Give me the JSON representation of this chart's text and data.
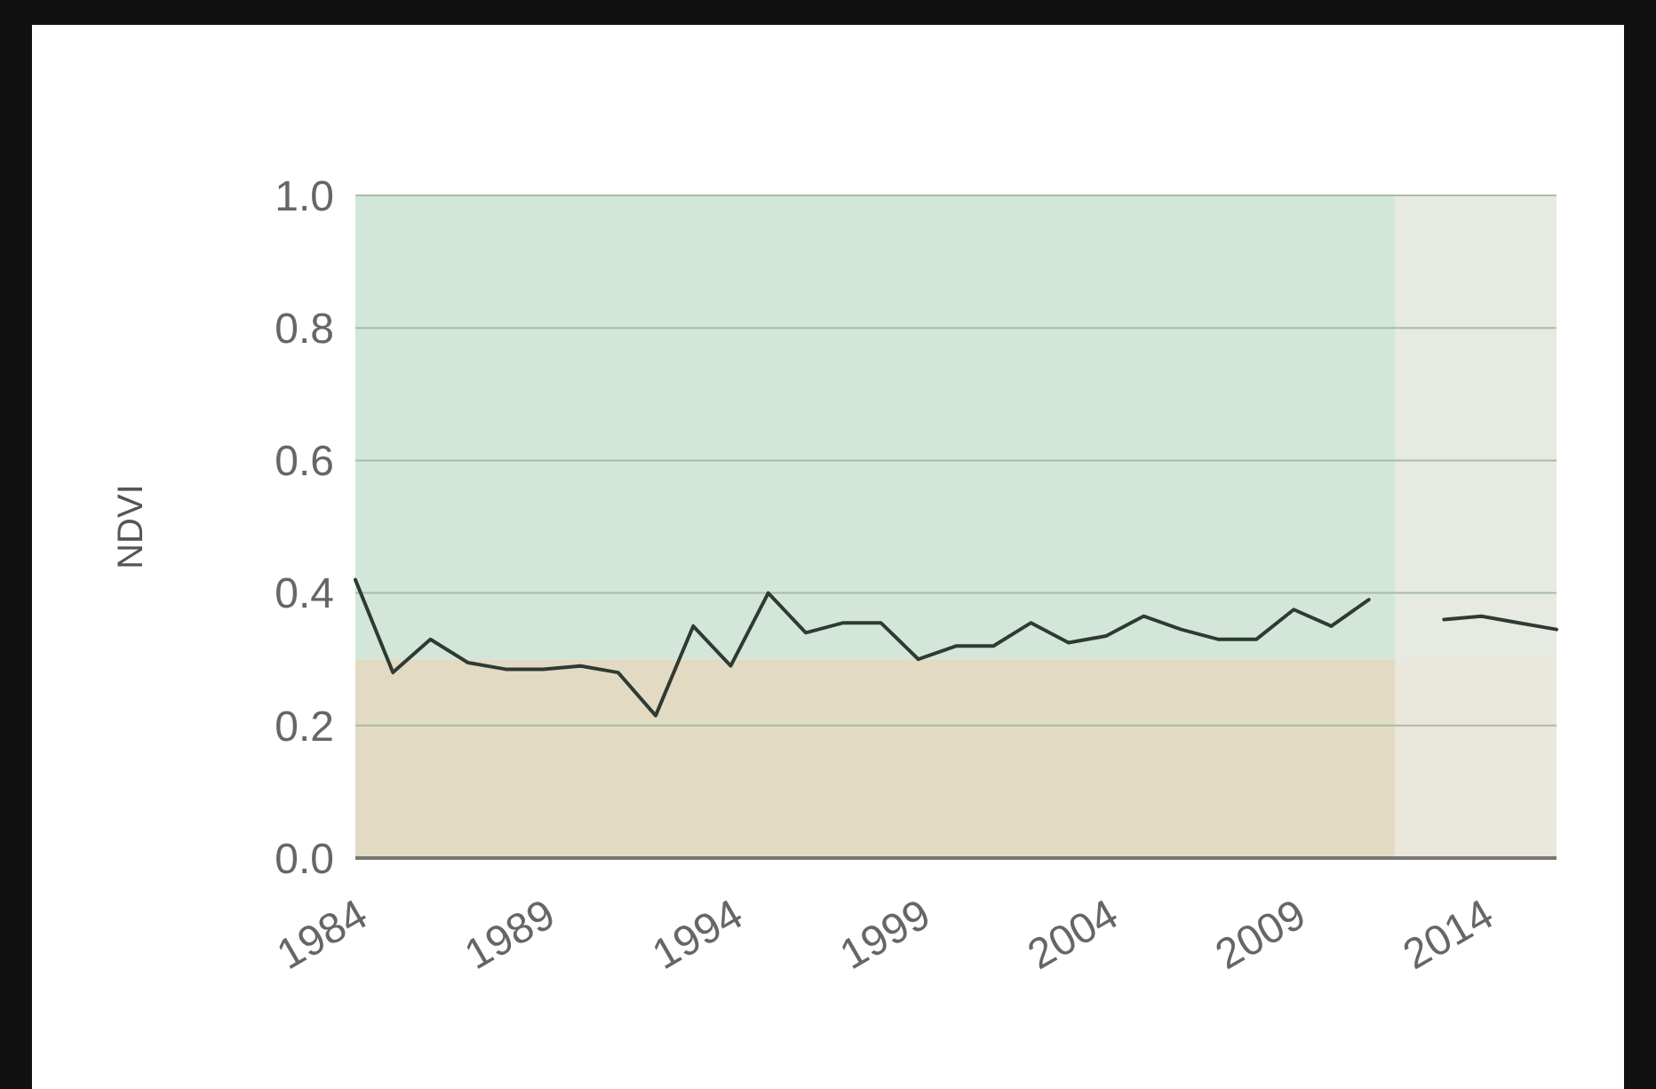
{
  "chart_data": {
    "type": "line",
    "ylabel": "NDVI",
    "x": [
      1984,
      1985,
      1986,
      1987,
      1988,
      1989,
      1990,
      1991,
      1992,
      1993,
      1994,
      1995,
      1996,
      1997,
      1998,
      1999,
      2000,
      2001,
      2002,
      2003,
      2004,
      2005,
      2006,
      2007,
      2008,
      2009,
      2010,
      2011,
      2012,
      2013,
      2014,
      2015,
      2016
    ],
    "series": [
      {
        "color": "#2f3a32",
        "values": [
          0.42,
          0.28,
          0.33,
          0.295,
          0.285,
          0.285,
          0.29,
          0.28,
          0.215,
          0.35,
          0.29,
          0.4,
          0.34,
          0.355,
          0.355,
          0.3,
          0.32,
          0.32,
          0.355,
          0.325,
          0.335,
          0.365,
          0.345,
          0.33,
          0.33,
          0.375,
          0.35,
          0.39,
          null,
          0.36,
          0.365,
          0.355,
          0.345
        ]
      }
    ],
    "xlim": [
      1984,
      2016
    ],
    "xticks": [
      1984,
      1989,
      1994,
      1999,
      2004,
      2009,
      2014
    ],
    "ylim": [
      0,
      1
    ],
    "yticks": [
      {
        "value": 0,
        "label": "0.0"
      },
      {
        "value": 0.2,
        "label": "0.2"
      },
      {
        "value": 0.4,
        "label": "0.4"
      },
      {
        "value": 0.6,
        "label": "0.6"
      },
      {
        "value": 0.8,
        "label": "0.8"
      },
      {
        "value": 1,
        "label": "1.0"
      }
    ],
    "bands": [
      {
        "axis": "y",
        "from": 0,
        "to": 0.3,
        "color": "#e3dac4"
      },
      {
        "axis": "y",
        "from": 0.3,
        "to": 1,
        "color": "#d2e7da"
      },
      {
        "axis": "x",
        "from": 2011.7,
        "to": 2016,
        "color": "#ecebe4"
      }
    ],
    "grid": "y",
    "marker": "none",
    "line_style": "solid"
  }
}
